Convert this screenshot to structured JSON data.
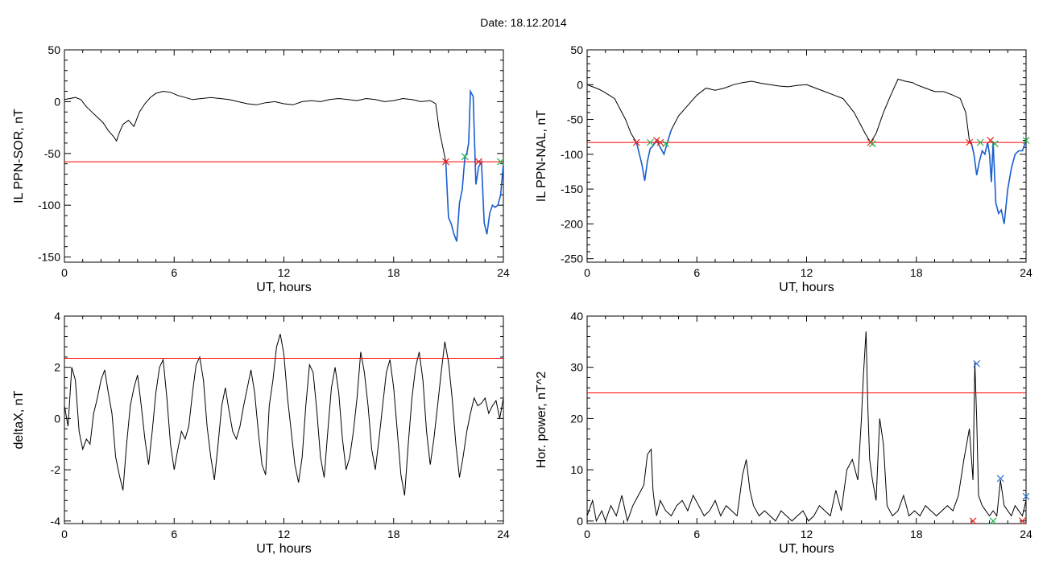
{
  "figure": {
    "title": "Date:  18.12.2014"
  },
  "colors": {
    "trace": "#000000",
    "threshold": "#ff0000",
    "segment": "#1a5fd0",
    "marker_red": "#e8201a",
    "marker_green": "#22b14c",
    "marker_blue": "#2a6fd6"
  },
  "chart_data": [
    {
      "type": "line",
      "xlabel": "UT, hours",
      "ylabel": "IL PPN-SOR, nT",
      "xlim": [
        0,
        24
      ],
      "ylim": [
        -155,
        50
      ],
      "xticks": [
        0,
        6,
        12,
        18,
        24
      ],
      "yticks": [
        -150,
        -100,
        -50,
        0,
        50
      ],
      "threshold": -58,
      "series": [
        {
          "x": [
            0,
            0.3,
            0.6,
            0.9,
            1.2,
            1.5,
            1.8,
            2.1,
            2.4,
            2.7,
            2.85,
            3.0,
            3.2,
            3.5,
            3.8,
            4.1,
            4.4,
            4.7,
            5.0,
            5.4,
            5.8,
            6.2,
            6.6,
            7.0,
            7.5,
            8.0,
            8.5,
            9.0,
            9.5,
            10,
            10.5,
            11,
            11.5,
            12,
            12.5,
            13,
            13.5,
            14,
            14.5,
            15,
            15.5,
            16,
            16.5,
            17,
            17.5,
            18,
            18.5,
            19,
            19.5,
            20,
            20.3,
            20.5,
            20.7,
            20.85,
            21.0,
            21.15,
            21.3,
            21.45,
            21.6,
            21.75,
            21.9,
            22.0,
            22.1,
            22.2,
            22.35,
            22.5,
            22.65,
            22.8,
            22.95,
            23.1,
            23.25,
            23.4,
            23.55,
            23.7,
            23.85,
            24.0
          ],
          "y": [
            2,
            3,
            4,
            2,
            -5,
            -10,
            -15,
            -20,
            -28,
            -34,
            -38,
            -30,
            -22,
            -18,
            -24,
            -10,
            -2,
            4,
            8,
            10,
            9,
            6,
            4,
            2,
            3,
            4,
            3,
            2,
            0,
            -2,
            -3,
            -1,
            0,
            -2,
            -3,
            0,
            1,
            0,
            2,
            3,
            2,
            1,
            3,
            2,
            0,
            1,
            3,
            2,
            0,
            1,
            -2,
            -28,
            -45,
            -58,
            -112,
            -118,
            -128,
            -135,
            -98,
            -85,
            -53,
            -50,
            -40,
            10,
            5,
            -80,
            -63,
            -58,
            -117,
            -128,
            -108,
            -100,
            -102,
            -100,
            -90,
            -60
          ]
        }
      ],
      "segment_from_x": 20.85,
      "markers": [
        {
          "x": 20.85,
          "y": -58,
          "color": "red"
        },
        {
          "x": 21.9,
          "y": -53,
          "color": "green"
        },
        {
          "x": 22.65,
          "y": -58,
          "color": "red"
        },
        {
          "x": 23.85,
          "y": -58,
          "color": "green"
        }
      ]
    },
    {
      "type": "line",
      "xlabel": "UT, hours",
      "ylabel": "IL PPN-NAL, nT",
      "xlim": [
        0,
        24
      ],
      "ylim": [
        -255,
        50
      ],
      "xticks": [
        0,
        6,
        12,
        18,
        24
      ],
      "yticks": [
        -250,
        -200,
        -150,
        -100,
        -50,
        0,
        50
      ],
      "threshold": -83,
      "series": [
        {
          "x": [
            0,
            0.3,
            0.6,
            0.9,
            1.2,
            1.5,
            1.8,
            2.1,
            2.4,
            2.7,
            3.0,
            3.15,
            3.3,
            3.45,
            3.6,
            3.8,
            4.0,
            4.2,
            4.4,
            4.6,
            5.0,
            5.5,
            6.0,
            6.5,
            7.0,
            7.5,
            8.0,
            8.5,
            9.0,
            9.5,
            10,
            10.5,
            11,
            11.5,
            12,
            12.5,
            13,
            13.5,
            14,
            14.3,
            14.6,
            14.9,
            15.2,
            15.5,
            15.8,
            16.2,
            16.6,
            17,
            17.4,
            17.8,
            18,
            18.5,
            19,
            19.5,
            20,
            20.4,
            20.7,
            20.9,
            21.0,
            21.15,
            21.3,
            21.45,
            21.6,
            21.75,
            21.9,
            22.0,
            22.1,
            22.2,
            22.35,
            22.5,
            22.65,
            22.8,
            23.0,
            23.2,
            23.4,
            23.6,
            23.8,
            24.0
          ],
          "y": [
            0,
            -3,
            -6,
            -10,
            -15,
            -20,
            -35,
            -50,
            -70,
            -83,
            -115,
            -138,
            -110,
            -92,
            -88,
            -80,
            -90,
            -100,
            -82,
            -65,
            -45,
            -30,
            -15,
            -5,
            -8,
            -5,
            0,
            3,
            5,
            2,
            0,
            -2,
            -3,
            -1,
            0,
            -5,
            -10,
            -15,
            -20,
            -30,
            -40,
            -55,
            -70,
            -83,
            -70,
            -40,
            -15,
            8,
            5,
            3,
            0,
            -5,
            -10,
            -10,
            -15,
            -20,
            -40,
            -80,
            -83,
            -100,
            -130,
            -110,
            -95,
            -100,
            -83,
            -100,
            -140,
            -83,
            -170,
            -185,
            -180,
            -200,
            -150,
            -120,
            -100,
            -95,
            -95,
            -80
          ]
        }
      ],
      "segment_ranges": [
        [
          2.7,
          4.6
        ],
        [
          20.9,
          24.0
        ]
      ],
      "markers": [
        {
          "x": 2.7,
          "y": -83,
          "color": "red"
        },
        {
          "x": 3.45,
          "y": -83,
          "color": "green"
        },
        {
          "x": 3.8,
          "y": -80,
          "color": "red"
        },
        {
          "x": 4.0,
          "y": -83,
          "color": "red"
        },
        {
          "x": 4.3,
          "y": -85,
          "color": "green"
        },
        {
          "x": 15.5,
          "y": -83,
          "color": "red"
        },
        {
          "x": 15.6,
          "y": -85,
          "color": "green"
        },
        {
          "x": 20.9,
          "y": -83,
          "color": "red"
        },
        {
          "x": 21.5,
          "y": -83,
          "color": "green"
        },
        {
          "x": 22.05,
          "y": -80,
          "color": "red"
        },
        {
          "x": 22.3,
          "y": -85,
          "color": "green"
        },
        {
          "x": 24.0,
          "y": -80,
          "color": "green"
        }
      ]
    },
    {
      "type": "line",
      "xlabel": "UT, hours",
      "ylabel": "deltaX, nT",
      "xlim": [
        0,
        24
      ],
      "ylim": [
        -4.1,
        4
      ],
      "xticks": [
        0,
        6,
        12,
        18,
        24
      ],
      "yticks": [
        -4,
        -2,
        0,
        2,
        4
      ],
      "threshold": 2.35,
      "series": [
        {
          "x": [
            0,
            0.2,
            0.4,
            0.6,
            0.8,
            1.0,
            1.2,
            1.4,
            1.6,
            1.8,
            2.0,
            2.2,
            2.4,
            2.6,
            2.8,
            3.0,
            3.2,
            3.4,
            3.6,
            3.8,
            4.0,
            4.2,
            4.4,
            4.6,
            4.8,
            5.0,
            5.2,
            5.4,
            5.6,
            5.8,
            6.0,
            6.2,
            6.4,
            6.6,
            6.8,
            7.0,
            7.2,
            7.4,
            7.6,
            7.8,
            8.0,
            8.2,
            8.4,
            8.6,
            8.8,
            9.0,
            9.2,
            9.4,
            9.6,
            9.8,
            10.0,
            10.2,
            10.4,
            10.6,
            10.8,
            11.0,
            11.2,
            11.4,
            11.6,
            11.8,
            12.0,
            12.2,
            12.4,
            12.6,
            12.8,
            13.0,
            13.2,
            13.4,
            13.6,
            13.8,
            14.0,
            14.2,
            14.4,
            14.6,
            14.8,
            15.0,
            15.2,
            15.4,
            15.6,
            15.8,
            16.0,
            16.2,
            16.4,
            16.6,
            16.8,
            17.0,
            17.2,
            17.4,
            17.6,
            17.8,
            18.0,
            18.2,
            18.4,
            18.6,
            18.8,
            19.0,
            19.2,
            19.4,
            19.6,
            19.8,
            20.0,
            20.2,
            20.4,
            20.6,
            20.8,
            21.0,
            21.2,
            21.4,
            21.6,
            21.8,
            22.0,
            22.2,
            22.4,
            22.6,
            22.8,
            23.0,
            23.2,
            23.4,
            23.6,
            23.8,
            24.0
          ],
          "y": [
            0.5,
            -0.3,
            2.0,
            1.5,
            -0.5,
            -1.2,
            -0.8,
            -1.0,
            0.2,
            0.8,
            1.5,
            1.9,
            1.0,
            0.2,
            -1.5,
            -2.2,
            -2.8,
            -1.0,
            0.5,
            1.2,
            1.7,
            0.5,
            -0.8,
            -1.8,
            -0.5,
            1.0,
            2.0,
            2.3,
            0.8,
            -1.0,
            -2.0,
            -1.2,
            -0.5,
            -0.8,
            -0.3,
            1.0,
            2.1,
            2.4,
            1.5,
            -0.3,
            -1.5,
            -2.4,
            -1.0,
            0.5,
            1.2,
            0.3,
            -0.5,
            -0.8,
            -0.3,
            0.5,
            1.2,
            1.9,
            1.0,
            -0.5,
            -1.8,
            -2.2,
            0.5,
            1.5,
            2.8,
            3.3,
            2.5,
            0.8,
            -0.5,
            -1.8,
            -2.5,
            -1.5,
            0.5,
            2.1,
            1.8,
            0.3,
            -1.5,
            -2.3,
            -0.5,
            1.2,
            2.0,
            1.0,
            -0.8,
            -2.0,
            -1.5,
            -0.5,
            0.8,
            2.6,
            1.8,
            0.5,
            -1.2,
            -2.0,
            -0.8,
            0.5,
            1.8,
            2.3,
            1.2,
            -0.5,
            -2.2,
            -3.0,
            -1.0,
            0.8,
            2.0,
            2.6,
            1.5,
            -0.5,
            -1.8,
            -0.8,
            0.5,
            1.8,
            3.0,
            2.2,
            0.8,
            -1.0,
            -2.3,
            -1.5,
            -0.5,
            0.2,
            0.8,
            0.5,
            0.6,
            0.8,
            0.2,
            0.5,
            0.7,
            0.0,
            0.8
          ]
        }
      ],
      "markers": []
    },
    {
      "type": "line",
      "xlabel": "UT, hours",
      "ylabel": "Hor. power, nT^2",
      "xlim": [
        0,
        24
      ],
      "ylim": [
        -0.5,
        40
      ],
      "xticks": [
        0,
        6,
        12,
        18,
        24
      ],
      "yticks": [
        0,
        10,
        20,
        30,
        40
      ],
      "threshold": 25,
      "series": [
        {
          "x": [
            0,
            0.3,
            0.5,
            0.8,
            1.0,
            1.3,
            1.6,
            1.9,
            2.2,
            2.5,
            2.8,
            3.1,
            3.3,
            3.5,
            3.6,
            3.7,
            3.8,
            4.0,
            4.3,
            4.6,
            4.9,
            5.2,
            5.5,
            5.8,
            6.1,
            6.4,
            6.7,
            7.0,
            7.3,
            7.6,
            7.9,
            8.2,
            8.5,
            8.7,
            8.9,
            9.1,
            9.4,
            9.7,
            10.0,
            10.3,
            10.6,
            10.9,
            11.2,
            11.5,
            11.8,
            12.1,
            12.4,
            12.7,
            13.0,
            13.3,
            13.6,
            13.9,
            14.2,
            14.5,
            14.8,
            15.0,
            15.1,
            15.25,
            15.35,
            15.45,
            15.6,
            15.8,
            16.0,
            16.2,
            16.4,
            16.7,
            17.0,
            17.3,
            17.6,
            17.9,
            18.2,
            18.5,
            18.8,
            19.1,
            19.4,
            19.7,
            20.0,
            20.3,
            20.6,
            20.9,
            21.1,
            21.2,
            21.3,
            21.4,
            21.6,
            21.8,
            22.0,
            22.2,
            22.4,
            22.6,
            22.8,
            23.0,
            23.2,
            23.4,
            23.6,
            23.8,
            24.0
          ],
          "y": [
            1,
            4,
            0,
            2,
            0,
            3,
            1,
            5,
            0,
            3,
            5,
            7,
            13,
            14,
            6,
            3,
            1,
            4,
            2,
            1,
            3,
            4,
            2,
            5,
            3,
            1,
            2,
            4,
            1,
            3,
            2,
            1,
            9,
            12,
            6,
            3,
            1,
            2,
            1,
            0,
            2,
            1,
            0,
            1,
            2,
            0,
            1,
            3,
            2,
            1,
            6,
            2,
            10,
            12,
            8,
            20,
            28,
            37,
            22,
            12,
            8,
            4,
            20,
            15,
            3,
            1,
            2,
            5,
            1,
            2,
            1,
            3,
            2,
            1,
            2,
            3,
            2,
            5,
            12,
            18,
            8,
            31,
            20,
            5,
            3,
            2,
            1,
            2,
            1,
            8,
            3,
            2,
            1,
            3,
            2,
            1,
            4
          ]
        }
      ],
      "markers": [
        {
          "x": 21.3,
          "y": 30.7,
          "color": "blue"
        },
        {
          "x": 22.6,
          "y": 8.3,
          "color": "blue"
        },
        {
          "x": 24.0,
          "y": 4.8,
          "color": "blue"
        },
        {
          "x": 21.1,
          "y": 0,
          "color": "red"
        },
        {
          "x": 22.2,
          "y": 0,
          "color": "green"
        },
        {
          "x": 23.8,
          "y": 0,
          "color": "red"
        }
      ]
    }
  ]
}
